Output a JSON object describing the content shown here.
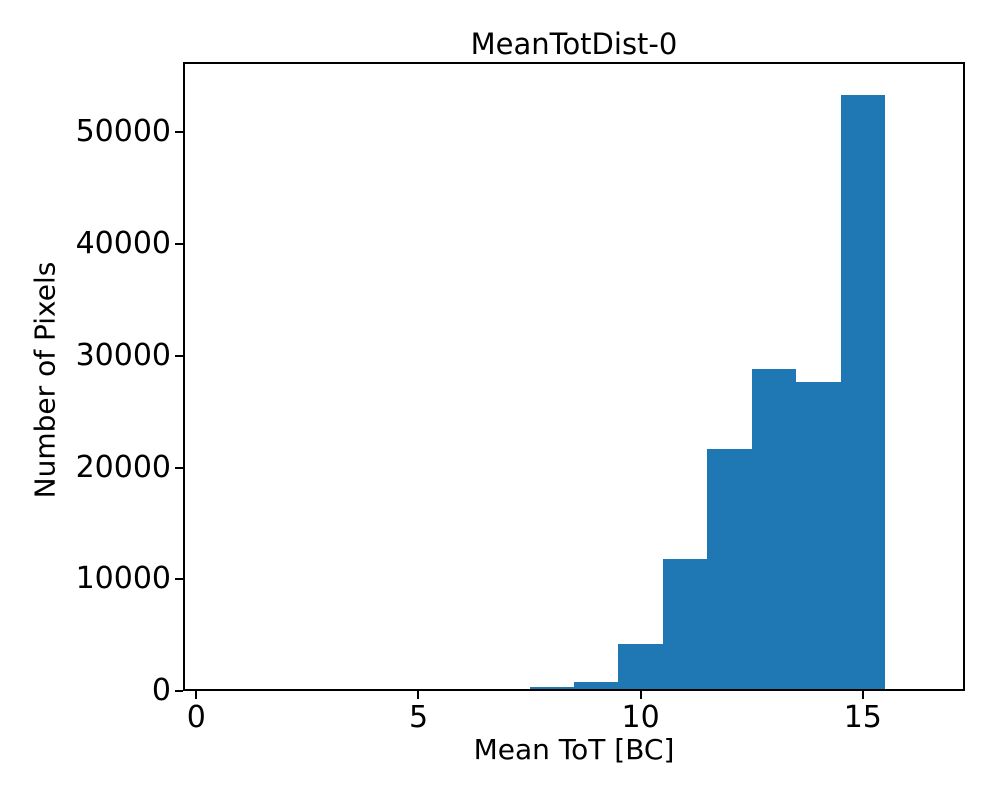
{
  "figure": {
    "background": "#ffffff",
    "bar_color": "#1f77b4",
    "axis_color": "#000000",
    "text_color": "#000000"
  },
  "chart_data": {
    "type": "bar",
    "subtype": "histogram",
    "title": "MeanTotDist-0",
    "xlabel": "Mean ToT [BC]",
    "ylabel": "Number of Pixels",
    "bin_width": 1,
    "bin_centers": [
      1,
      2,
      3,
      4,
      5,
      6,
      7,
      8,
      9,
      10,
      11,
      12,
      13,
      14,
      15,
      16
    ],
    "counts": [
      0,
      0,
      0,
      0,
      0,
      0,
      0,
      200,
      650,
      4000,
      11600,
      21500,
      28600,
      27500,
      53200,
      0
    ],
    "xlim": [
      -0.3,
      17.3
    ],
    "ylim": [
      0,
      56300
    ],
    "xticks": [
      0,
      5,
      10,
      15
    ],
    "yticks": [
      0,
      10000,
      20000,
      30000,
      40000,
      50000
    ],
    "grid": false,
    "legend_position": "none"
  }
}
